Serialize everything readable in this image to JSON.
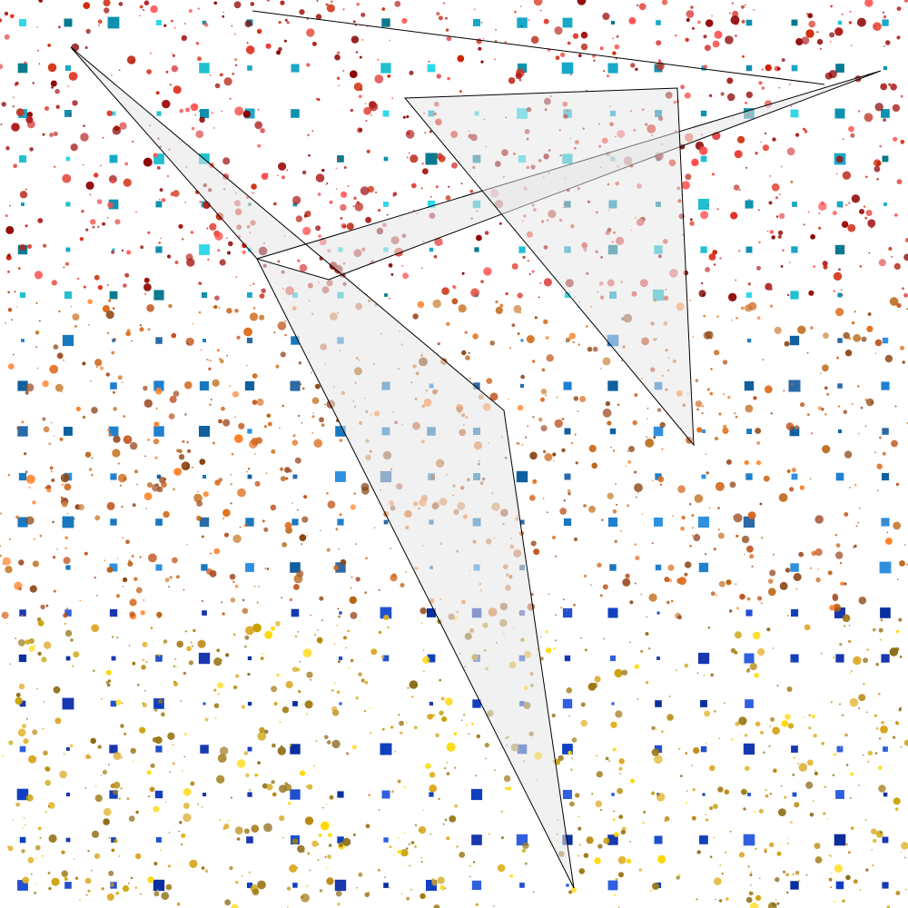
{
  "colors": {
    "background": "#ffffff",
    "dot_palette_top": [
      "#8b0000",
      "#b22222",
      "#cc2200",
      "#e03020",
      "#c0392b",
      "#a01010",
      "#ff4d4d",
      "#e05050"
    ],
    "dot_palette_middle": [
      "#c0501a",
      "#d2691e",
      "#a0522d",
      "#b8600b",
      "#e07020",
      "#8b4513",
      "#cd853f",
      "#ff7f24"
    ],
    "dot_palette_bottom": [
      "#b8860b",
      "#daa520",
      "#c9a000",
      "#8b6914",
      "#e0b020",
      "#a07810",
      "#ffd700",
      "#9c7a1c"
    ],
    "square_palette_top": [
      "#20c0d0",
      "#1090b0",
      "#30d8e8",
      "#0a7a90",
      "#18a8c8"
    ],
    "square_palette_middle": [
      "#2080d0",
      "#1060a0",
      "#3090e0",
      "#1878c0",
      "#2a6aa8"
    ],
    "square_palette_bottom": [
      "#1040c0",
      "#2050d0",
      "#0a30a0",
      "#3060e0",
      "#1838b0"
    ],
    "polygon_fill": "#e6e6e6",
    "polygon_stroke": "#000000"
  },
  "shapes": {
    "big_arrow_shape": "filled-polygon",
    "right_triangle_shape": "filled-polygon",
    "thin_wedge_shape": "filled-polygon",
    "top_line_shape": "open-polyline"
  }
}
